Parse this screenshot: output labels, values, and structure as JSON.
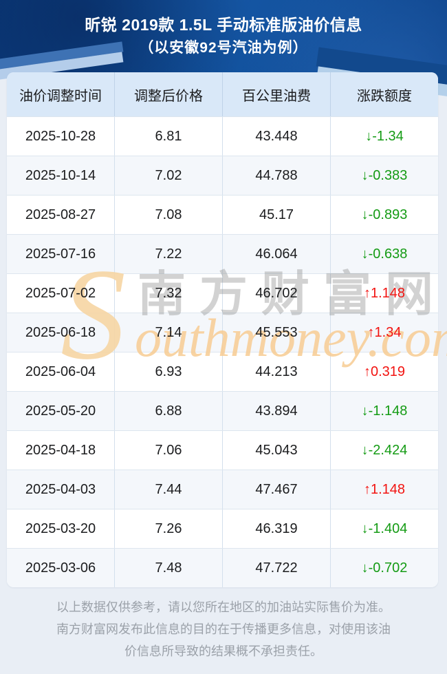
{
  "header": {
    "title": "昕锐 2019款 1.5L 手动标准版油价信息",
    "subtitle": "（以安徽92号汽油为例）"
  },
  "table": {
    "columns": [
      "油价调整时间",
      "调整后价格",
      "百公里油费",
      "涨跌额度"
    ],
    "rows": [
      {
        "date": "2025-10-28",
        "price": "6.81",
        "cost_per_100km": "43.448",
        "change": "↓-1.34",
        "direction": "down"
      },
      {
        "date": "2025-10-14",
        "price": "7.02",
        "cost_per_100km": "44.788",
        "change": "↓-0.383",
        "direction": "down"
      },
      {
        "date": "2025-08-27",
        "price": "7.08",
        "cost_per_100km": "45.17",
        "change": "↓-0.893",
        "direction": "down"
      },
      {
        "date": "2025-07-16",
        "price": "7.22",
        "cost_per_100km": "46.064",
        "change": "↓-0.638",
        "direction": "down"
      },
      {
        "date": "2025-07-02",
        "price": "7.32",
        "cost_per_100km": "46.702",
        "change": "↑1.148",
        "direction": "up"
      },
      {
        "date": "2025-06-18",
        "price": "7.14",
        "cost_per_100km": "45.553",
        "change": "↑1.34",
        "direction": "up"
      },
      {
        "date": "2025-06-04",
        "price": "6.93",
        "cost_per_100km": "44.213",
        "change": "↑0.319",
        "direction": "up"
      },
      {
        "date": "2025-05-20",
        "price": "6.88",
        "cost_per_100km": "43.894",
        "change": "↓-1.148",
        "direction": "down"
      },
      {
        "date": "2025-04-18",
        "price": "7.06",
        "cost_per_100km": "45.043",
        "change": "↓-2.424",
        "direction": "down"
      },
      {
        "date": "2025-04-03",
        "price": "7.44",
        "cost_per_100km": "47.467",
        "change": "↑1.148",
        "direction": "up"
      },
      {
        "date": "2025-03-20",
        "price": "7.26",
        "cost_per_100km": "46.319",
        "change": "↓-1.404",
        "direction": "down"
      },
      {
        "date": "2025-03-06",
        "price": "7.48",
        "cost_per_100km": "47.722",
        "change": "↓-0.702",
        "direction": "down"
      }
    ]
  },
  "watermark": {
    "s": "S",
    "cn": "南方财富网",
    "en": "outhmoney.com"
  },
  "footer": {
    "disclaimer": "以上数据仅供参考，请以您所在地区的加油站实际售价为准。南方财富网发布此信息的目的在于传播更多信息，对使用该油价信息所导致的结果概不承担责任。"
  },
  "colors": {
    "up": "#f21310",
    "down": "#149b14",
    "hero_bg": "#0f4a8d",
    "table_head_bg": "#d9e8f8",
    "page_bg": "#e9eef5"
  }
}
